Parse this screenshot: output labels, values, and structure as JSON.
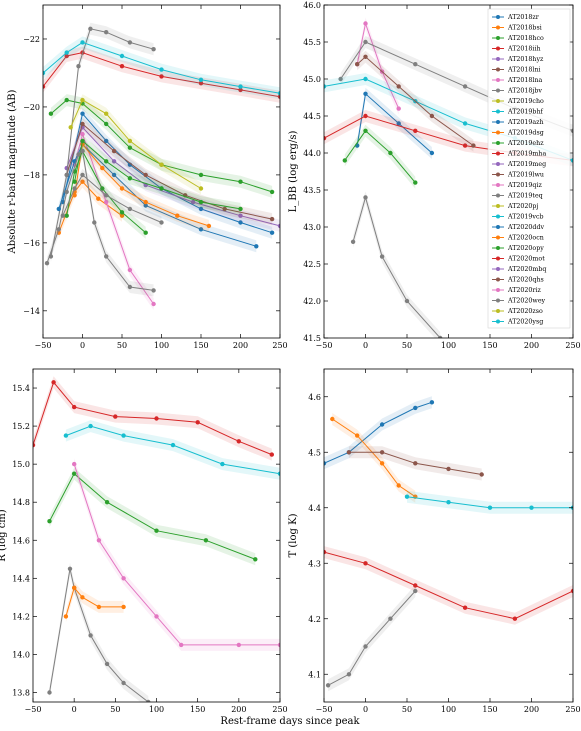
{
  "figure": {
    "xlabel": "Rest-frame days since peak"
  },
  "colors": {
    "AT2018zr": "#1f77b4",
    "AT2018bsi": "#ff7f0e",
    "AT2018hco": "#2ca02c",
    "AT2018iih": "#d62728",
    "AT2018hyz": "#9467bd",
    "AT2018lni": "#8c564b",
    "AT2018lna": "#e377c2",
    "AT2018jbv": "#7f7f7f",
    "AT2019cho": "#bcbd22",
    "AT2019bhf": "#17becf"
  },
  "chart_data": [
    {
      "type": "line",
      "panel": "top-left",
      "ylabel": "Absolute r-band magnitude (AB)",
      "xlim": [
        -50,
        250
      ],
      "ylim": [
        -13.2,
        -23
      ],
      "inverted_y": true,
      "xticks": [
        -50,
        0,
        50,
        100,
        150,
        200,
        250
      ],
      "yticks": [
        -22,
        -20,
        -18,
        -16,
        -14
      ],
      "series": [
        {
          "name": "AT2018zr",
          "x": [
            -25,
            0,
            30,
            60,
            100,
            150,
            200,
            240
          ],
          "y": [
            -17.2,
            -19.8,
            -19.0,
            -18.3,
            -17.6,
            -17.0,
            -16.6,
            -16.3
          ]
        },
        {
          "name": "AT2018bsi",
          "x": [
            -30,
            -10,
            0,
            20,
            50
          ],
          "y": [
            -16.3,
            -17.5,
            -17.8,
            -17.3,
            -16.8
          ]
        },
        {
          "name": "AT2018hco",
          "x": [
            -40,
            -20,
            0,
            30,
            60,
            100,
            150,
            200,
            240
          ],
          "y": [
            -19.8,
            -20.2,
            -20.1,
            -19.5,
            -18.8,
            -18.3,
            -18.0,
            -17.8,
            -17.5
          ]
        },
        {
          "name": "AT2018iih",
          "x": [
            -50,
            -20,
            0,
            50,
            100,
            150,
            200,
            250
          ],
          "y": [
            -20.6,
            -21.5,
            -21.6,
            -21.2,
            -20.9,
            -20.7,
            -20.5,
            -20.3
          ]
        },
        {
          "name": "AT2018hyz",
          "x": [
            -20,
            0,
            40,
            80,
            140,
            200,
            250
          ],
          "y": [
            -18.2,
            -19.4,
            -18.4,
            -17.7,
            -17.2,
            -16.8,
            -16.5
          ]
        },
        {
          "name": "AT2018lni",
          "x": [
            -20,
            0,
            40,
            80,
            130,
            180,
            240
          ],
          "y": [
            -18.0,
            -19.5,
            -18.7,
            -18.0,
            -17.4,
            -17.0,
            -16.7
          ]
        },
        {
          "name": "AT2018lna",
          "x": [
            -10,
            0,
            30,
            60,
            90
          ],
          "y": [
            -18.3,
            -19.2,
            -17.2,
            -15.2,
            -14.2
          ]
        },
        {
          "name": "AT2018jbv",
          "x": [
            -40,
            -20,
            -5,
            10,
            30,
            60,
            90
          ],
          "y": [
            -15.6,
            -18.0,
            -21.2,
            -22.3,
            -22.2,
            -21.9,
            -21.7
          ]
        },
        {
          "name": "AT2019cho",
          "x": [
            -15,
            0,
            30,
            60,
            100,
            150
          ],
          "y": [
            -19.4,
            -20.2,
            -19.8,
            -19.0,
            -18.3,
            -17.6
          ]
        },
        {
          "name": "AT2019bhf",
          "x": [
            -50,
            -20,
            0,
            50,
            100,
            150,
            200,
            250
          ],
          "y": [
            -21.0,
            -21.6,
            -21.9,
            -21.5,
            -21.1,
            -20.8,
            -20.6,
            -20.4
          ]
        },
        {
          "name": "AT2019azh",
          "x": [
            -30,
            -10,
            0,
            40,
            80,
            150,
            220
          ],
          "y": [
            -17.0,
            -18.4,
            -18.9,
            -18.0,
            -17.1,
            -16.4,
            -15.9
          ]
        },
        {
          "name": "AT2019dsg",
          "x": [
            -10,
            0,
            25,
            50,
            80,
            120,
            160
          ],
          "y": [
            -17.4,
            -18.9,
            -18.2,
            -17.6,
            -17.2,
            -16.8,
            -16.5
          ]
        },
        {
          "name": "AT2019ehz",
          "x": [
            -20,
            -10,
            0,
            25,
            50,
            80
          ],
          "y": [
            -16.8,
            -18.1,
            -18.7,
            -17.6,
            -16.9,
            -16.3
          ]
        },
        {
          "name": "AT2019teq",
          "x": [
            -25,
            -10,
            0,
            30,
            60,
            100
          ],
          "y": [
            -16.8,
            -17.6,
            -18.0,
            -17.4,
            -17.0,
            -16.6
          ]
        },
        {
          "name": "AT2020opy",
          "x": [
            -10,
            0,
            30,
            60,
            100,
            150,
            200
          ],
          "y": [
            -17.8,
            -19.0,
            -18.4,
            -17.9,
            -17.6,
            -17.2,
            -17.0
          ]
        },
        {
          "name": "AT2020wey",
          "x": [
            -45,
            -30,
            -20,
            -5,
            0,
            15,
            30,
            60,
            90
          ],
          "y": [
            -15.4,
            -16.4,
            -17.5,
            -18.6,
            -18.7,
            -16.6,
            -15.6,
            -14.7,
            -14.6
          ]
        }
      ]
    },
    {
      "type": "line",
      "panel": "top-right",
      "ylabel": "L_BB (log erg/s)",
      "xlim": [
        -50,
        250
      ],
      "ylim": [
        41.5,
        46.0
      ],
      "xticks": [
        -50,
        0,
        50,
        100,
        150,
        200,
        250
      ],
      "yticks": [
        41.5,
        42.0,
        42.5,
        43.0,
        43.5,
        44.0,
        44.5,
        45.0,
        45.5,
        46.0
      ],
      "legend_position": "top-right",
      "legend": [
        "AT2018zr",
        "AT2018bsi",
        "AT2018hco",
        "AT2018iih",
        "AT2018hyz",
        "AT2018lni",
        "AT2018lna",
        "AT2018jbv",
        "AT2019cho",
        "AT2019bhf",
        "AT2019azh",
        "AT2019dsg",
        "AT2019ehz",
        "AT2019mha",
        "AT2019meg",
        "AT2019lwu",
        "AT2019qiz",
        "AT2019teq",
        "AT2020pj",
        "AT2019vcb",
        "AT2020ddv",
        "AT2020ocn",
        "AT2020opy",
        "AT2020mot",
        "AT2020mbq",
        "AT2020qhs",
        "AT2020riz",
        "AT2020wey",
        "AT2020zso",
        "AT2020ysg"
      ],
      "series": [
        {
          "name": "AT2018zr",
          "x": [
            -10,
            0,
            40,
            80
          ],
          "y": [
            44.1,
            44.8,
            44.4,
            44.0
          ]
        },
        {
          "name": "AT2018hco",
          "x": [
            -25,
            0,
            30,
            60
          ],
          "y": [
            43.9,
            44.3,
            44.0,
            43.6
          ]
        },
        {
          "name": "AT2018iih",
          "x": [
            -50,
            0,
            60,
            120,
            180,
            250
          ],
          "y": [
            44.2,
            44.5,
            44.3,
            44.1,
            44.0,
            43.9
          ]
        },
        {
          "name": "AT2018lna",
          "x": [
            -10,
            0,
            20,
            40
          ],
          "y": [
            45.2,
            45.75,
            45.1,
            44.6
          ]
        },
        {
          "name": "AT2018jbv",
          "x": [
            -30,
            0,
            60,
            120,
            180,
            250
          ],
          "y": [
            45.0,
            45.5,
            45.2,
            44.9,
            44.6,
            44.3
          ]
        },
        {
          "name": "AT2019bhf",
          "x": [
            -50,
            0,
            60,
            120,
            180,
            250
          ],
          "y": [
            44.9,
            45.0,
            44.7,
            44.4,
            44.2,
            43.9
          ]
        },
        {
          "name": "AT2020qhs",
          "x": [
            -10,
            0,
            40,
            80,
            130
          ],
          "y": [
            45.2,
            45.3,
            44.9,
            44.5,
            44.1
          ]
        },
        {
          "name": "AT2020wey",
          "x": [
            -15,
            0,
            20,
            50,
            90
          ],
          "y": [
            42.8,
            43.4,
            42.6,
            42.0,
            41.5
          ]
        }
      ]
    },
    {
      "type": "line",
      "panel": "bottom-left",
      "ylabel": "R (log cm)",
      "xlim": [
        -50,
        250
      ],
      "ylim": [
        13.75,
        15.5
      ],
      "xticks": [
        -50,
        0,
        50,
        100,
        150,
        200,
        250
      ],
      "yticks": [
        13.8,
        14.0,
        14.2,
        14.4,
        14.6,
        14.8,
        15.0,
        15.2,
        15.4
      ],
      "series": [
        {
          "name": "AT2018iih",
          "x": [
            -50,
            -25,
            0,
            50,
            100,
            150,
            200,
            240
          ],
          "y": [
            15.1,
            15.43,
            15.3,
            15.25,
            15.24,
            15.22,
            15.12,
            15.05
          ]
        },
        {
          "name": "AT2019bhf",
          "x": [
            -10,
            20,
            60,
            120,
            180,
            250
          ],
          "y": [
            15.15,
            15.2,
            15.15,
            15.1,
            15.0,
            14.95
          ]
        },
        {
          "name": "AT2018jbv",
          "x": [
            -30,
            -5,
            0,
            20,
            40,
            60,
            90
          ],
          "y": [
            13.8,
            14.45,
            14.35,
            14.1,
            13.95,
            13.85,
            13.75
          ]
        },
        {
          "name": "AT2018bsi",
          "x": [
            -10,
            0,
            10,
            30,
            60
          ],
          "y": [
            14.2,
            14.35,
            14.3,
            14.25,
            14.25
          ]
        },
        {
          "name": "AT2018hco",
          "x": [
            -30,
            0,
            40,
            100,
            160,
            220
          ],
          "y": [
            14.7,
            14.95,
            14.8,
            14.65,
            14.6,
            14.5
          ]
        },
        {
          "name": "AT2018lna",
          "x": [
            0,
            30,
            60,
            100,
            130,
            200,
            250
          ],
          "y": [
            15.0,
            14.6,
            14.4,
            14.2,
            14.05,
            14.05,
            14.05
          ]
        }
      ]
    },
    {
      "type": "line",
      "panel": "bottom-right",
      "ylabel": "T (log K)",
      "xlim": [
        -50,
        250
      ],
      "ylim": [
        4.05,
        4.65
      ],
      "xticks": [
        -50,
        0,
        50,
        100,
        150,
        200,
        250
      ],
      "yticks": [
        4.1,
        4.2,
        4.3,
        4.4,
        4.5,
        4.6
      ],
      "series": [
        {
          "name": "AT2018zr",
          "x": [
            -50,
            -20,
            20,
            60,
            80
          ],
          "y": [
            4.48,
            4.5,
            4.55,
            4.58,
            4.59
          ]
        },
        {
          "name": "AT2018bsi",
          "x": [
            -40,
            -10,
            20,
            40,
            60
          ],
          "y": [
            4.56,
            4.53,
            4.48,
            4.44,
            4.42
          ]
        },
        {
          "name": "AT2018iih",
          "x": [
            -50,
            0,
            60,
            120,
            180,
            250
          ],
          "y": [
            4.32,
            4.3,
            4.26,
            4.22,
            4.2,
            4.25
          ]
        },
        {
          "name": "AT2018lni",
          "x": [
            -20,
            20,
            60,
            100,
            140
          ],
          "y": [
            4.5,
            4.5,
            4.48,
            4.47,
            4.46
          ]
        },
        {
          "name": "AT2019bhf",
          "x": [
            50,
            100,
            150,
            200,
            250
          ],
          "y": [
            4.42,
            4.41,
            4.4,
            4.4,
            4.4
          ]
        },
        {
          "name": "AT2020wey",
          "x": [
            -45,
            -20,
            0,
            30,
            60
          ],
          "y": [
            4.08,
            4.1,
            4.15,
            4.2,
            4.25
          ]
        }
      ]
    }
  ]
}
